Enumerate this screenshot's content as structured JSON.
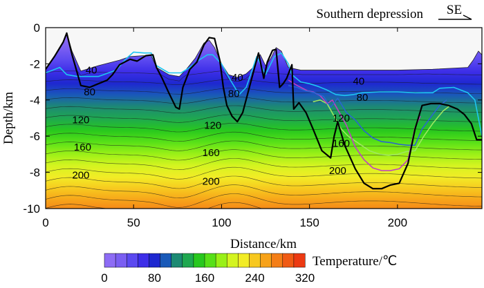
{
  "chart_data": {
    "type": "contour",
    "title": "Southern depression",
    "direction_label": "SE",
    "xlabel": "Distance/km",
    "ylabel": "Depth/km",
    "xlim": [
      0,
      248
    ],
    "ylim": [
      -10,
      0
    ],
    "x_ticks": [
      "0",
      "50",
      "100",
      "150",
      "200"
    ],
    "y_ticks": [
      "0",
      "-2",
      "-4",
      "-6",
      "-8",
      "-10"
    ],
    "isotherm_interval_c": 20,
    "isotherm_labels": [
      {
        "text": "40",
        "x": 26,
        "y": -2.35
      },
      {
        "text": "80",
        "x": 25,
        "y": -3.55
      },
      {
        "text": "120",
        "x": 20,
        "y": -5.1
      },
      {
        "text": "160",
        "x": 21,
        "y": -6.6
      },
      {
        "text": "200",
        "x": 20,
        "y": -8.15
      },
      {
        "text": "40",
        "x": 109,
        "y": -2.75
      },
      {
        "text": "80",
        "x": 107,
        "y": -3.65
      },
      {
        "text": "120",
        "x": 95,
        "y": -5.4
      },
      {
        "text": "160",
        "x": 94,
        "y": -6.9
      },
      {
        "text": "200",
        "x": 94,
        "y": -8.5
      },
      {
        "text": "40",
        "x": 178,
        "y": -2.95
      },
      {
        "text": "80",
        "x": 180,
        "y": -3.85
      },
      {
        "text": "120",
        "x": 168,
        "y": -5.0
      },
      {
        "text": "160",
        "x": 168,
        "y": -6.4
      },
      {
        "text": "200",
        "x": 166,
        "y": -7.9
      }
    ],
    "top_surface": {
      "x": [
        0,
        5,
        10,
        12,
        15,
        20,
        30,
        42,
        48,
        55,
        60,
        63,
        70,
        76,
        80,
        85,
        90,
        93,
        96,
        100,
        104,
        109,
        114,
        118,
        122,
        125,
        128,
        131,
        134,
        138,
        145,
        160,
        180,
        200,
        220,
        240,
        243,
        246,
        248
      ],
      "y": [
        -2.3,
        -1.6,
        -0.8,
        -0.3,
        -1.3,
        -2.4,
        -2.1,
        -1.8,
        -1.6,
        -1.55,
        -1.55,
        -2.2,
        -2.6,
        -2.7,
        -2.3,
        -1.7,
        -0.85,
        -0.7,
        -1.1,
        -2.0,
        -2.6,
        -2.75,
        -2.55,
        -2.2,
        -1.5,
        -2.1,
        -1.7,
        -1.1,
        -1.3,
        -2.2,
        -2.35,
        -2.35,
        -2.35,
        -2.35,
        -2.3,
        -2.2,
        -1.8,
        -1.3,
        -1.5
      ]
    },
    "temperature_colorbar": {
      "label": "Temperature/℃",
      "ticks": [
        "0",
        "80",
        "160",
        "240",
        "320"
      ],
      "range": [
        0,
        320
      ],
      "step": 20,
      "colors": [
        "#8d6cf5",
        "#7a5ef2",
        "#5b49f0",
        "#3d2ee8",
        "#1e28d0",
        "#1a5ab8",
        "#1d8a73",
        "#1fa850",
        "#28c81e",
        "#57e018",
        "#99f017",
        "#d4f420",
        "#f2ec26",
        "#f7c81f",
        "#f7a219",
        "#f47e17",
        "#f05a14",
        "#ec3a12"
      ]
    },
    "series": [
      {
        "name": "black boundary",
        "color": "#000000",
        "x": [
          0,
          5,
          10,
          12,
          15,
          20,
          25,
          30,
          35,
          38,
          42,
          48,
          52,
          57,
          61,
          63,
          66,
          70,
          74,
          76,
          78,
          82,
          86,
          90,
          93,
          96,
          99,
          101,
          103,
          106,
          109,
          112,
          115,
          118,
          121,
          124,
          126,
          129,
          131,
          133,
          135,
          137,
          140,
          141,
          144,
          148,
          152,
          157,
          162,
          164,
          166,
          170,
          176,
          181,
          186,
          191,
          196,
          201,
          206,
          210,
          214,
          219,
          224,
          229,
          234,
          238,
          242,
          245,
          248
        ],
        "y": [
          -2.3,
          -1.6,
          -0.8,
          -0.3,
          -1.5,
          -3.2,
          -3.3,
          -3.1,
          -2.9,
          -2.6,
          -2.05,
          -1.75,
          -1.85,
          -1.55,
          -1.5,
          -2.2,
          -2.75,
          -3.6,
          -4.4,
          -4.5,
          -3.3,
          -2.3,
          -1.9,
          -0.95,
          -0.55,
          -0.6,
          -1.8,
          -3.3,
          -4.3,
          -4.9,
          -5.2,
          -4.7,
          -3.6,
          -2.5,
          -1.4,
          -2.8,
          -1.9,
          -1.25,
          -1.2,
          -3.3,
          -3.1,
          -2.8,
          -2.05,
          -4.5,
          -4.15,
          -4.7,
          -5.6,
          -6.8,
          -7.2,
          -6.0,
          -5.2,
          -6.5,
          -7.8,
          -8.6,
          -8.9,
          -8.9,
          -8.7,
          -8.6,
          -7.5,
          -5.6,
          -4.3,
          -4.2,
          -4.2,
          -4.3,
          -4.5,
          -4.8,
          -5.3,
          -6.2,
          -6.2
        ]
      },
      {
        "name": "cyan",
        "color": "#1ec6f2",
        "x": [
          0,
          8,
          12,
          18,
          24,
          30,
          40,
          46,
          50,
          56,
          60,
          63,
          70,
          77,
          82,
          87,
          92,
          95,
          100,
          105,
          110,
          114,
          120,
          125,
          130,
          134,
          138,
          140,
          145,
          150,
          155,
          160,
          165,
          170,
          175,
          180,
          190,
          200,
          210,
          220,
          224,
          232,
          240,
          244,
          248
        ],
        "y": [
          -2.5,
          -2.2,
          -2.6,
          -2.7,
          -2.7,
          -2.7,
          -2.35,
          -1.7,
          -1.35,
          -1.4,
          -1.4,
          -2.1,
          -2.5,
          -2.5,
          -2.2,
          -1.8,
          -1.5,
          -1.5,
          -2.0,
          -2.9,
          -3.7,
          -3.3,
          -1.6,
          -2.6,
          -1.6,
          -1.4,
          -2.0,
          -2.6,
          -3.0,
          -3.1,
          -3.25,
          -3.45,
          -3.7,
          -3.75,
          -3.7,
          -3.6,
          -3.55,
          -3.55,
          -3.6,
          -3.6,
          -3.35,
          -3.3,
          -3.6,
          -4.0,
          -6.0
        ]
      },
      {
        "name": "blue",
        "color": "#2a64d0",
        "x": [
          138,
          143,
          148,
          153,
          158,
          162,
          166,
          171,
          176,
          181,
          186,
          191,
          196,
          201,
          206,
          210,
          214,
          220,
          224,
          228
        ],
        "y": [
          -3.2,
          -3.3,
          -3.5,
          -3.6,
          -3.8,
          -4.4,
          -3.9,
          -4.7,
          -5.1,
          -5.7,
          -6.1,
          -6.3,
          -6.35,
          -6.45,
          -6.5,
          -6.5,
          -5.6,
          -4.8,
          -4.3,
          -4.0
        ]
      },
      {
        "name": "magenta",
        "color": "#c03ec4",
        "x": [
          138,
          143,
          149,
          152,
          156,
          160,
          163,
          167,
          171,
          176,
          181,
          186,
          191,
          196,
          201,
          206,
          210,
          213
        ],
        "y": [
          -2.9,
          -3.2,
          -3.5,
          -3.55,
          -3.75,
          -4.2,
          -4.0,
          -4.7,
          -5.4,
          -6.6,
          -7.3,
          -7.75,
          -7.9,
          -7.9,
          -7.8,
          -7.3,
          -5.5,
          -4.9
        ]
      },
      {
        "name": "light green",
        "color": "#9ee860",
        "x": [
          152,
          156,
          160,
          164,
          168,
          172,
          178,
          184,
          190,
          195,
          200,
          205,
          210,
          215,
          220,
          226,
          230
        ],
        "y": [
          -4.1,
          -4.0,
          -4.2,
          -4.9,
          -5.6,
          -6.0,
          -6.4,
          -6.8,
          -7.0,
          -7.05,
          -7.0,
          -6.85,
          -6.8,
          -6.0,
          -5.3,
          -4.6,
          -4.3
        ]
      }
    ]
  }
}
